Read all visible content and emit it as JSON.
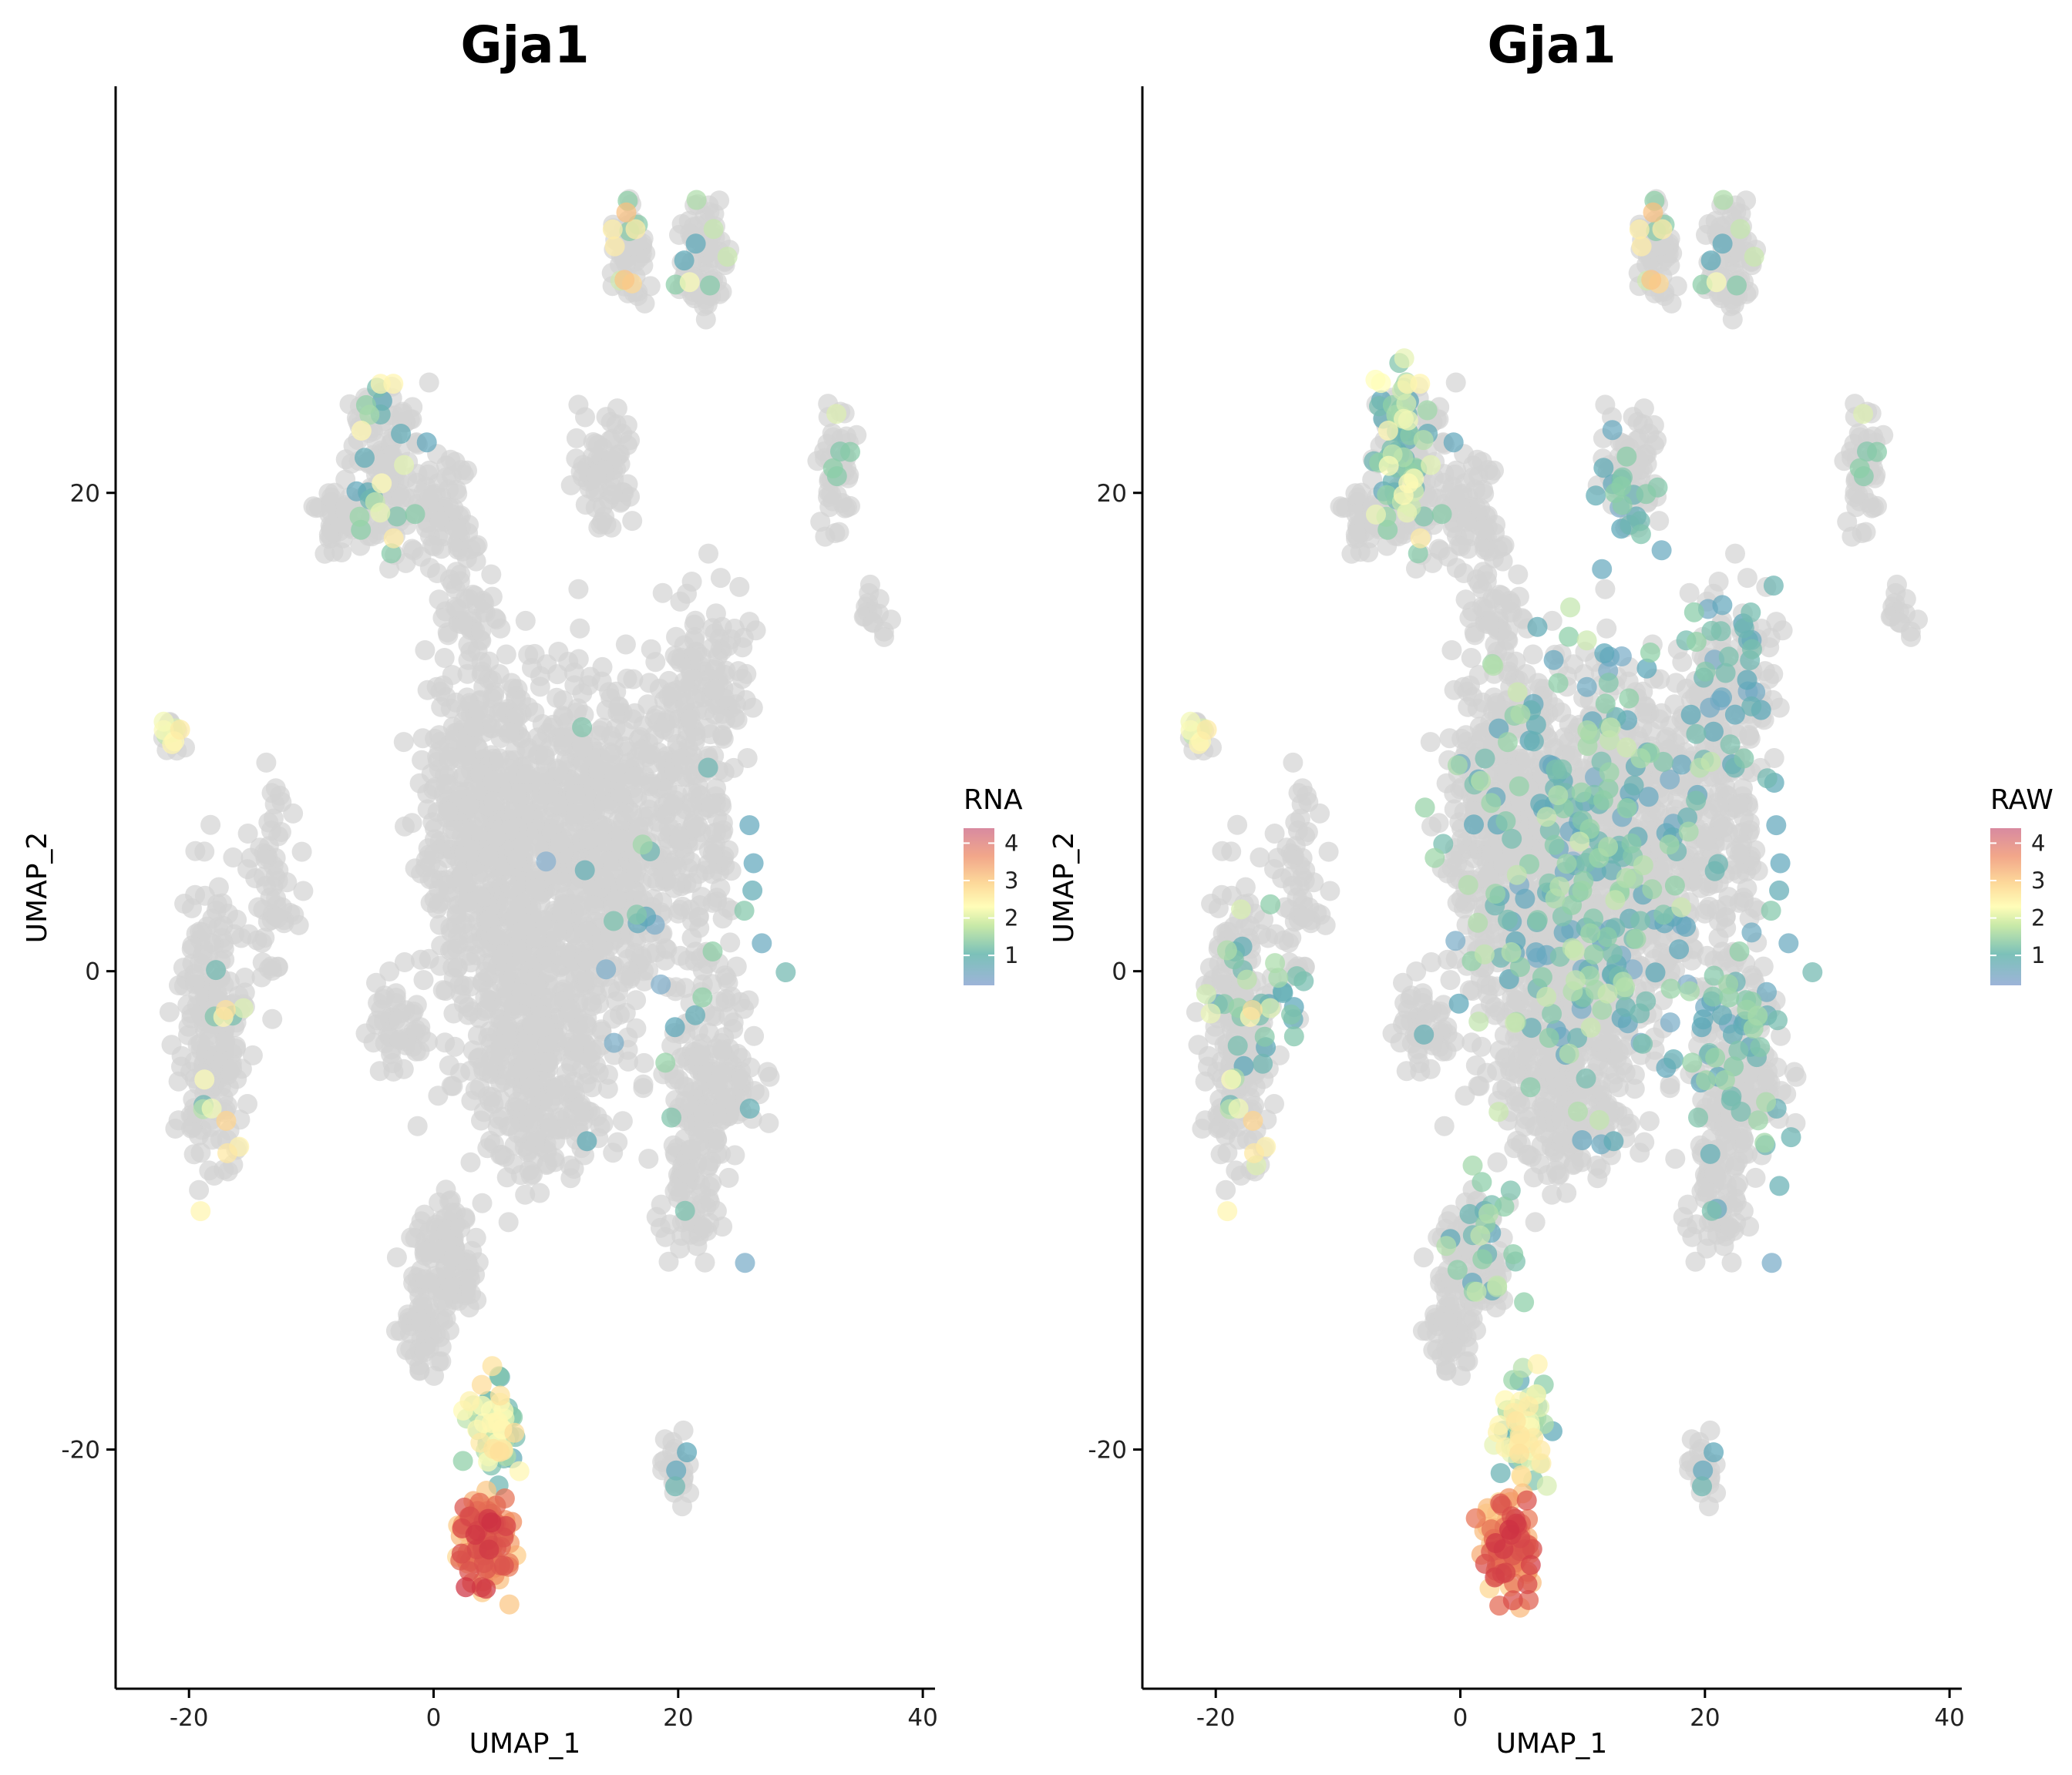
{
  "chart_data": [
    {
      "type": "scatter",
      "title": "Gja1",
      "xlabel": "UMAP_1",
      "ylabel": "UMAP_2",
      "xlim": [
        -26,
        41
      ],
      "ylim": [
        -30,
        37
      ],
      "xticks": [
        -20,
        0,
        20,
        40
      ],
      "yticks": [
        -20,
        0,
        20
      ],
      "legend": {
        "title": "RNA",
        "min": 0.2,
        "max": 4.4,
        "ticks": [
          1,
          2,
          3,
          4
        ],
        "placement": "right"
      },
      "colormap": [
        "#9db4d8",
        "#5aa6b8",
        "#8ed0a6",
        "#fffdb8",
        "#fdcf8a",
        "#f08a5c",
        "#cc2e42"
      ],
      "background_color": "#d3d3d3",
      "profile": "rna"
    },
    {
      "type": "scatter",
      "title": "Gja1",
      "xlabel": "UMAP_1",
      "ylabel": "UMAP_2",
      "xlim": [
        -26,
        41
      ],
      "ylim": [
        -30,
        37
      ],
      "xticks": [
        -20,
        0,
        20,
        40
      ],
      "yticks": [
        -20,
        0,
        20
      ],
      "legend": {
        "title": "RAW",
        "min": 0.2,
        "max": 4.4,
        "ticks": [
          1,
          2,
          3,
          4
        ],
        "placement": "right"
      },
      "colormap": [
        "#9db4d8",
        "#5aa6b8",
        "#8ed0a6",
        "#fffdb8",
        "#fdcf8a",
        "#f08a5c",
        "#cc2e42"
      ],
      "background_color": "#d3d3d3",
      "profile": "raw"
    }
  ]
}
